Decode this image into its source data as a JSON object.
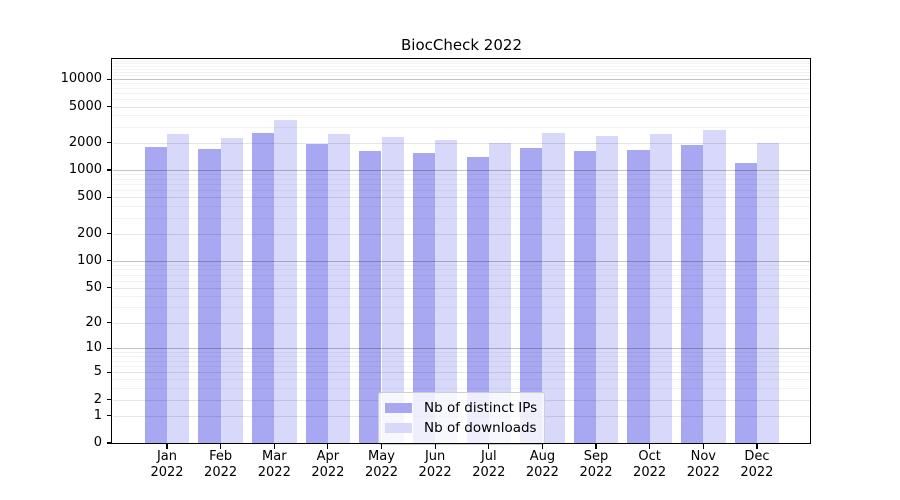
{
  "chart_data": {
    "type": "bar",
    "title": "BiocCheck 2022",
    "xlabel": "",
    "ylabel": "",
    "scale": "symlog",
    "ylim": [
      0,
      16250
    ],
    "grid": true,
    "legend_position": "bottom-center",
    "yticks": [
      10000,
      5000,
      2000,
      1000,
      500,
      200,
      100,
      50,
      20,
      10,
      5,
      2,
      1,
      0
    ],
    "categories": [
      "Jan 2022",
      "Feb 2022",
      "Mar 2022",
      "Apr 2022",
      "May 2022",
      "Jun 2022",
      "Jul 2022",
      "Aug 2022",
      "Sep 2022",
      "Oct 2022",
      "Nov 2022",
      "Dec 2022"
    ],
    "series": [
      {
        "name": "Nb of distinct IPs",
        "color": "#a8a8f2",
        "values": [
          1790,
          1700,
          2580,
          1920,
          1620,
          1530,
          1410,
          1770,
          1620,
          1670,
          1880,
          1190
        ]
      },
      {
        "name": "Nb of downloads",
        "color": "#d8d8fa",
        "values": [
          2500,
          2240,
          3560,
          2480,
          2330,
          2140,
          2000,
          2560,
          2390,
          2520,
          2770,
          2000
        ]
      }
    ],
    "grid_colors": {
      "major": "rgba(0,0,0,0.235)",
      "mid": "rgba(0,0,0,0.10)",
      "minor": "rgba(0,0,0,0.05)"
    },
    "axis_color": "#000000"
  }
}
